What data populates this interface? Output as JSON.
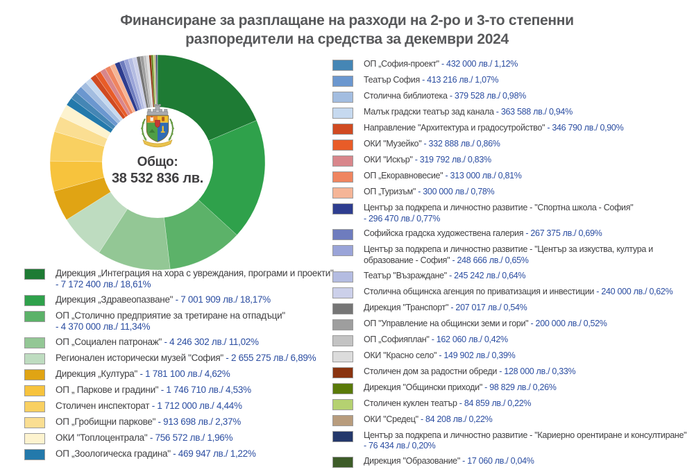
{
  "title": {
    "line1": "Финансиране за разплащане на разходи на 2-ро и 3-то степенни",
    "line2": "разпоредители на средства за декември 2024"
  },
  "center": {
    "label": "Общо:",
    "total": "38 532 836 лв.",
    "logo": "sofia-coat-of-arms"
  },
  "colors": {
    "title_text": "#58595b",
    "label_text": "#414042",
    "value_text": "#2b4da1",
    "background": "#ffffff"
  },
  "chart_data": {
    "type": "pie",
    "donut": true,
    "start_angle_deg": -90,
    "direction": "clockwise",
    "legend_position": "bottom-left and right column",
    "title": "Финансиране за разплащане на разходи на 2-ро и 3-то степенни разпоредители на средства за декември 2024",
    "total_label": "Общо: 38 532 836 лв.",
    "total_value": 38532836,
    "items": [
      {
        "name": "Дирекция „Интеграция на хора с увреждания, програми и проекти\"",
        "value": 7172400,
        "value_text": "7 172 400 лв.",
        "pct": 18.61,
        "pct_text": "18,61%",
        "color": "#1e7b34",
        "column": "left",
        "value_newline": true
      },
      {
        "name": "Дирекция „Здравеопазване\"",
        "value": 7001909,
        "value_text": "7 001 909 лв.",
        "pct": 18.17,
        "pct_text": "18,17%",
        "color": "#2fa14b",
        "column": "left",
        "value_newline": false
      },
      {
        "name": "ОП „Столично предприятие за третиране на отпадъци\"",
        "value": 4370000,
        "value_text": "4 370 000 лв.",
        "pct": 11.34,
        "pct_text": "11,34%",
        "color": "#5cb269",
        "column": "left",
        "value_newline": true
      },
      {
        "name": "ОП „Социален патронаж\"",
        "value": 4246302,
        "value_text": "4 246 302 лв.",
        "pct": 11.02,
        "pct_text": "11,02%",
        "color": "#93c795",
        "column": "left",
        "value_newline": false
      },
      {
        "name": "Регионален исторически музей \"София\"",
        "value": 2655275,
        "value_text": "2 655 275 лв.",
        "pct": 6.89,
        "pct_text": "6,89%",
        "color": "#bedcc0",
        "column": "left",
        "value_newline": false
      },
      {
        "name": "Дирекция „Култура\"",
        "value": 1781100,
        "value_text": "1 781 100 лв.",
        "pct": 4.62,
        "pct_text": "4,62%",
        "color": "#e0a414",
        "column": "left",
        "value_newline": false
      },
      {
        "name": "ОП „ Паркове и градини\"",
        "value": 1746710,
        "value_text": "1 746 710 лв.",
        "pct": 4.53,
        "pct_text": "4,53%",
        "color": "#f7c33d",
        "column": "left",
        "value_newline": false
      },
      {
        "name": "Столичен инспекторат",
        "value": 1712000,
        "value_text": "1 712 000 лв.",
        "pct": 4.44,
        "pct_text": "4,44%",
        "color": "#f9d061",
        "column": "left",
        "value_newline": false
      },
      {
        "name": "ОП „Гробищни паркове\"",
        "value": 913698,
        "value_text": "913 698 лв.",
        "pct": 2.37,
        "pct_text": "2,37%",
        "color": "#fade92",
        "column": "left",
        "value_newline": false
      },
      {
        "name": "ОКИ \"Топлоцентрала\"",
        "value": 756572,
        "value_text": "756 572 лв.",
        "pct": 1.96,
        "pct_text": "1,96%",
        "color": "#fdf3cf",
        "column": "left",
        "value_newline": false
      },
      {
        "name": "ОП „Зоологическа градина\"",
        "value": 469947,
        "value_text": "469 947 лв.",
        "pct": 1.22,
        "pct_text": "1,22%",
        "color": "#2379ab",
        "column": "left",
        "value_newline": false
      },
      {
        "name": "ОП  „София-проект\"",
        "value": 432000,
        "value_text": "432 000 лв.",
        "pct": 1.12,
        "pct_text": "1,12%",
        "color": "#4586b5",
        "column": "right",
        "value_newline": false
      },
      {
        "name": "Театър София",
        "value": 413216,
        "value_text": "413 216 лв.",
        "pct": 1.07,
        "pct_text": "1,07%",
        "color": "#6b97cf",
        "column": "right",
        "value_newline": false
      },
      {
        "name": "Столична библиотека",
        "value": 379528,
        "value_text": "379 528 лв.",
        "pct": 0.98,
        "pct_text": "0,98%",
        "color": "#a3bde0",
        "column": "right",
        "value_newline": false
      },
      {
        "name": "Малък градски театър зад канала",
        "value": 363588,
        "value_text": "363 588 лв.",
        "pct": 0.94,
        "pct_text": "0,94%",
        "color": "#c6d9ef",
        "column": "right",
        "value_newline": false
      },
      {
        "name": "Направление \"Архитектура и градосутройство\"",
        "value": 346790,
        "value_text": "346 790 лв.",
        "pct": 0.9,
        "pct_text": "0,90%",
        "color": "#d04a21",
        "column": "right",
        "value_newline": false
      },
      {
        "name": "ОКИ \"Музейко\"",
        "value": 332888,
        "value_text": "332 888 лв.",
        "pct": 0.86,
        "pct_text": "0,86%",
        "color": "#e85c28",
        "column": "right",
        "value_newline": false
      },
      {
        "name": "ОКИ \"Искър\"",
        "value": 319792,
        "value_text": "319 792 лв.",
        "pct": 0.83,
        "pct_text": "0,83%",
        "color": "#d8868b",
        "column": "right",
        "value_newline": false
      },
      {
        "name": "ОП „Екоравновесие\"",
        "value": 313000,
        "value_text": "313 000 лв.",
        "pct": 0.81,
        "pct_text": "0,81%",
        "color": "#ef8560",
        "column": "right",
        "value_newline": false
      },
      {
        "name": "ОП „Туризъм\"",
        "value": 300000,
        "value_text": "300 000 лв.",
        "pct": 0.78,
        "pct_text": "0,78%",
        "color": "#f5b597",
        "column": "right",
        "value_newline": false
      },
      {
        "name": "Център за подкрепа и личностно развитие - \"Спортна школа - София\"",
        "value": 296470,
        "value_text": "296 470 лв.",
        "pct": 0.77,
        "pct_text": "0,77%",
        "color": "#2e3d8f",
        "column": "right",
        "value_newline": false
      },
      {
        "name": "Софийска градска художествена галерия",
        "value": 267375,
        "value_text": "267 375 лв.",
        "pct": 0.69,
        "pct_text": "0,69%",
        "color": "#6e7cbe",
        "column": "right",
        "value_newline": false
      },
      {
        "name": "Център за подкрепа и личностно развитие - \"Център за изкуства, култура и образование - София\"",
        "value": 248666,
        "value_text": "248 666 лв.",
        "pct": 0.65,
        "pct_text": "0,65%",
        "color": "#9aa4d8",
        "column": "right",
        "value_newline": false
      },
      {
        "name": "Театър \"Възраждане\"",
        "value": 245242,
        "value_text": "245 242 лв.",
        "pct": 0.64,
        "pct_text": "0,64%",
        "color": "#b4bce1",
        "column": "right",
        "value_newline": false
      },
      {
        "name": "Столична общинска агенция по приватизация и инвестиции",
        "value": 240000,
        "value_text": "240 000 лв.",
        "pct": 0.62,
        "pct_text": "0,62%",
        "color": "#ccd0ea",
        "column": "right",
        "value_newline": false
      },
      {
        "name": "Дирекция \"Транспорт\"",
        "value": 207017,
        "value_text": "207 017 лв.",
        "pct": 0.54,
        "pct_text": "0,54%",
        "color": "#757575",
        "column": "right",
        "value_newline": false
      },
      {
        "name": "ОП \"Управление на общински земи и гори\"",
        "value": 200000,
        "value_text": "200 000 лв.",
        "pct": 0.52,
        "pct_text": "0,52%",
        "color": "#9e9e9e",
        "column": "right",
        "value_newline": false
      },
      {
        "name": "ОП  „Софияплан\"",
        "value": 162060,
        "value_text": "162 060 лв.",
        "pct": 0.42,
        "pct_text": "0,42%",
        "color": "#c3c3c3",
        "column": "right",
        "value_newline": false
      },
      {
        "name": "ОКИ \"Красно село\"",
        "value": 149902,
        "value_text": "149 902 лв.",
        "pct": 0.39,
        "pct_text": "0,39%",
        "color": "#dcdcdc",
        "column": "right",
        "value_newline": false
      },
      {
        "name": "Столичен дом за радостни обреди",
        "value": 128000,
        "value_text": "128 000 лв.",
        "pct": 0.33,
        "pct_text": "0,33%",
        "color": "#8a3410",
        "column": "right",
        "value_newline": false
      },
      {
        "name": "Дирекция \"Общински приходи\"",
        "value": 98829,
        "value_text": "98 829 лв.",
        "pct": 0.26,
        "pct_text": "0,26%",
        "color": "#5a7a08",
        "column": "right",
        "value_newline": false
      },
      {
        "name": " Столичен куклен театър",
        "value": 84859,
        "value_text": "84 859 лв.",
        "pct": 0.22,
        "pct_text": "0,22%",
        "color": "#b5d171",
        "column": "right",
        "value_newline": false
      },
      {
        "name": " ОКИ \"Средец\"",
        "value": 84208,
        "value_text": "84 208 лв.",
        "pct": 0.22,
        "pct_text": "0,22%",
        "color": "#b89c7d",
        "column": "right",
        "value_newline": false
      },
      {
        "name": "Център за подкрепа и личностно развитие - \"Кариерно орентиране и консултиране\"",
        "value": 76434,
        "value_text": "76 434 лв.",
        "pct": 0.2,
        "pct_text": "0,20%",
        "color": "#24386b",
        "column": "right",
        "value_newline": false
      },
      {
        "name": "Дирекция \"Образование\"",
        "value": 17060,
        "value_text": "17 060 лв.",
        "pct": 0.04,
        "pct_text": "0,04%",
        "color": "#3d5c28",
        "column": "right",
        "value_newline": false
      }
    ]
  }
}
